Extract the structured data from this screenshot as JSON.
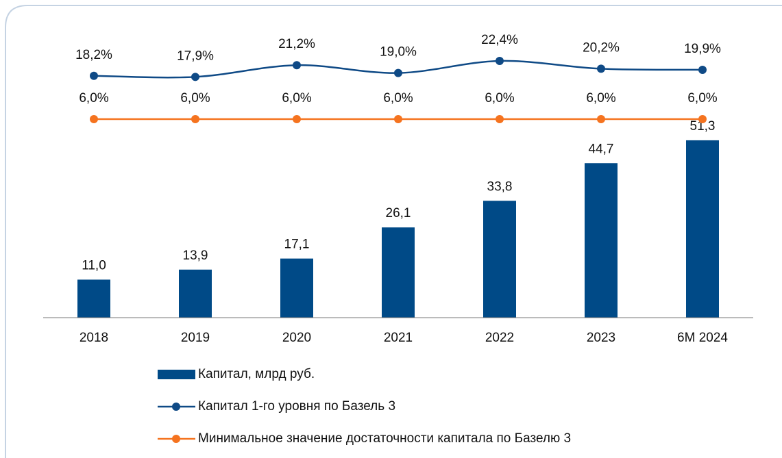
{
  "chart_data": {
    "type": "bar",
    "categories": [
      "2018",
      "2019",
      "2020",
      "2021",
      "2022",
      "2023",
      "6M 2024"
    ],
    "ylim": [
      0,
      80
    ],
    "y2lim": [
      -50,
      28
    ],
    "series": [
      {
        "name": "Капитал, млрд руб.",
        "type": "bar",
        "color": "#004a87",
        "values": [
          11.0,
          13.9,
          17.1,
          26.1,
          33.8,
          44.7,
          51.3
        ],
        "value_labels": [
          "11,0",
          "13,9",
          "17,1",
          "26,1",
          "33,8",
          "44,7",
          "51,3"
        ]
      },
      {
        "name": "Капитал 1-го уровня по Базель 3",
        "type": "line",
        "axis": "y2",
        "smooth": true,
        "color": "#0f4a86",
        "values": [
          18.2,
          17.9,
          21.2,
          19.0,
          22.4,
          20.2,
          19.9
        ],
        "value_labels": [
          "18,2%",
          "17,9%",
          "21,2%",
          "19,0%",
          "22,4%",
          "20,2%",
          "19,9%"
        ]
      },
      {
        "name": "Минимальное значение достаточности капитала по Базелю 3",
        "type": "line",
        "axis": "y2",
        "smooth": false,
        "color": "#f5731f",
        "values": [
          6.0,
          6.0,
          6.0,
          6.0,
          6.0,
          6.0,
          6.0
        ],
        "value_labels": [
          "6,0%",
          "6,0%",
          "6,0%",
          "6,0%",
          "6,0%",
          "6,0%",
          "6,0%"
        ]
      }
    ]
  }
}
